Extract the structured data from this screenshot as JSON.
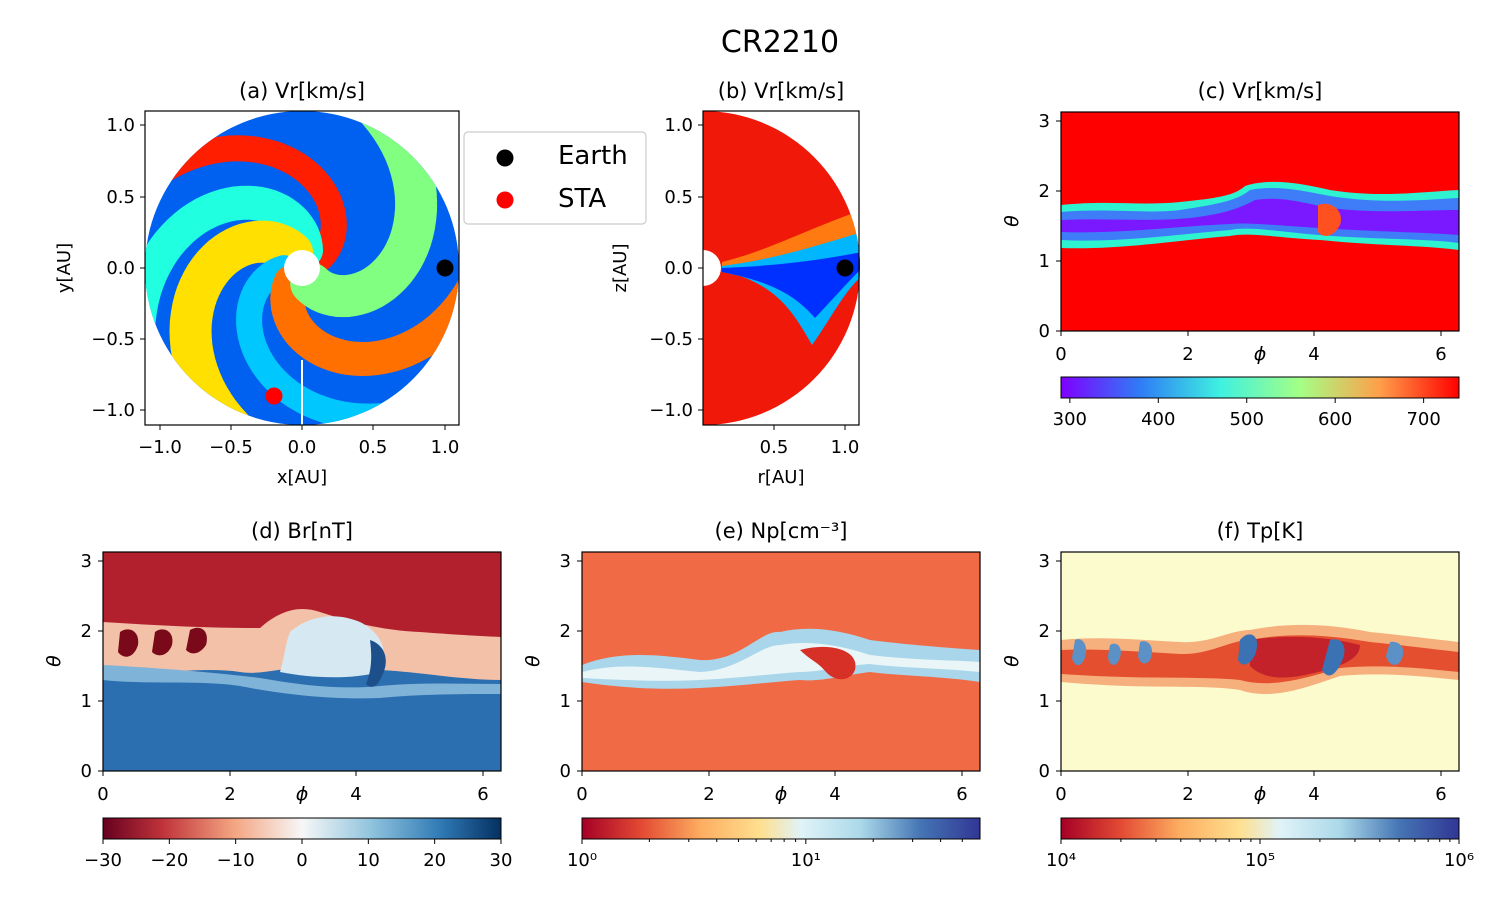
{
  "figure": {
    "title": "CR2210"
  },
  "legend": {
    "items": [
      {
        "label": "Earth",
        "color": "#000000"
      },
      {
        "label": "STA",
        "color": "#ff0000"
      }
    ]
  },
  "chart_data": [
    {
      "id": "a",
      "type": "heatmap",
      "title": "(a) Vr[km/s]",
      "xlabel": "x[AU]",
      "ylabel": "y[AU]",
      "xlim": [
        -1.1,
        1.1
      ],
      "ylim": [
        -1.1,
        1.1
      ],
      "xticks": [
        "−1.0",
        "−0.5",
        "0.0",
        "0.5",
        "1.0"
      ],
      "yticks": [
        "−1.0",
        "−0.5",
        "0.0",
        "0.5",
        "1.0"
      ],
      "colormap": "jet",
      "points": [
        {
          "name": "Earth",
          "x": 1.0,
          "y": 0.0,
          "color": "#000000"
        },
        {
          "name": "STA",
          "x": -0.2,
          "y": -0.9,
          "color": "#ff0000"
        }
      ]
    },
    {
      "id": "b",
      "type": "heatmap",
      "title": "(b) Vr[km/s]",
      "xlabel": "r[AU]",
      "ylabel": "z[AU]",
      "xlim": [
        0.0,
        1.1
      ],
      "ylim": [
        -1.1,
        1.1
      ],
      "xticks": [
        "0.5",
        "1.0"
      ],
      "yticks": [
        "−1.0",
        "−0.5",
        "0.0",
        "0.5",
        "1.0"
      ],
      "colormap": "jet",
      "points": [
        {
          "name": "Earth",
          "x": 1.0,
          "y": 0.0,
          "color": "#000000"
        }
      ]
    },
    {
      "id": "c",
      "type": "heatmap",
      "title": "(c) Vr[km/s]",
      "xlabel": "ϕ",
      "ylabel": "θ",
      "xlim": [
        0,
        6.28
      ],
      "ylim": [
        0,
        3.14
      ],
      "xticks": [
        "0",
        "2",
        "4",
        "6"
      ],
      "yticks": [
        "0",
        "1",
        "2",
        "3"
      ],
      "colormap": "rainbow",
      "colorbar": {
        "scale": "linear",
        "range": [
          290,
          740
        ],
        "ticks": [
          "300",
          "400",
          "500",
          "600",
          "700"
        ]
      }
    },
    {
      "id": "d",
      "type": "heatmap",
      "title": "(d) Br[nT]",
      "xlabel": "ϕ",
      "ylabel": "θ",
      "xlim": [
        0,
        6.28
      ],
      "ylim": [
        0,
        3.14
      ],
      "xticks": [
        "0",
        "2",
        "4",
        "6"
      ],
      "yticks": [
        "0",
        "1",
        "2",
        "3"
      ],
      "colormap": "RdBu",
      "colorbar": {
        "scale": "linear",
        "range": [
          -30,
          30
        ],
        "ticks": [
          "−30",
          "−20",
          "−10",
          "0",
          "10",
          "20",
          "30"
        ]
      }
    },
    {
      "id": "e",
      "type": "heatmap",
      "title": "(e) Np[cm⁻³]",
      "xlabel": "ϕ",
      "ylabel": "θ",
      "xlim": [
        0,
        6.28
      ],
      "ylim": [
        0,
        3.14
      ],
      "xticks": [
        "0",
        "2",
        "4",
        "6"
      ],
      "yticks": [
        "0",
        "1",
        "2",
        "3"
      ],
      "colormap": "RdYlBu",
      "colorbar": {
        "scale": "log",
        "range": [
          1,
          60
        ],
        "ticks": [
          "10⁰",
          "10¹"
        ]
      }
    },
    {
      "id": "f",
      "type": "heatmap",
      "title": "(f) Tp[K]",
      "xlabel": "ϕ",
      "ylabel": "θ",
      "xlim": [
        0,
        6.28
      ],
      "ylim": [
        0,
        3.14
      ],
      "xticks": [
        "0",
        "2",
        "4",
        "6"
      ],
      "yticks": [
        "0",
        "1",
        "2",
        "3"
      ],
      "colormap": "RdYlBu",
      "colorbar": {
        "scale": "log",
        "range": [
          10000,
          1000000
        ],
        "ticks": [
          "10⁴",
          "10⁵",
          "10⁶"
        ]
      }
    }
  ]
}
